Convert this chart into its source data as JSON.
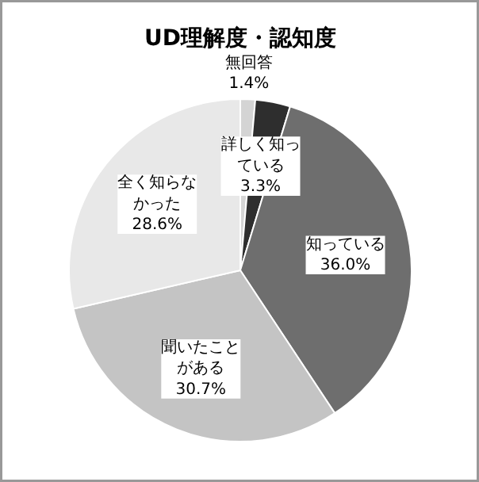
{
  "chart_data": {
    "type": "pie",
    "title": "UD理解度・認知度",
    "categories": [
      "無回答",
      "詳しく知っている",
      "知っている",
      "聞いたことがある",
      "全く知らなかった"
    ],
    "values": [
      1.4,
      3.3,
      36.0,
      30.7,
      28.6
    ],
    "value_labels": [
      "1.4%",
      "3.3%",
      "36.0%",
      "30.7%",
      "28.6%"
    ],
    "colors": [
      "#d4d4d4",
      "#2e2e2e",
      "#6e6e6e",
      "#c4c4c4",
      "#e8e8e8"
    ]
  }
}
